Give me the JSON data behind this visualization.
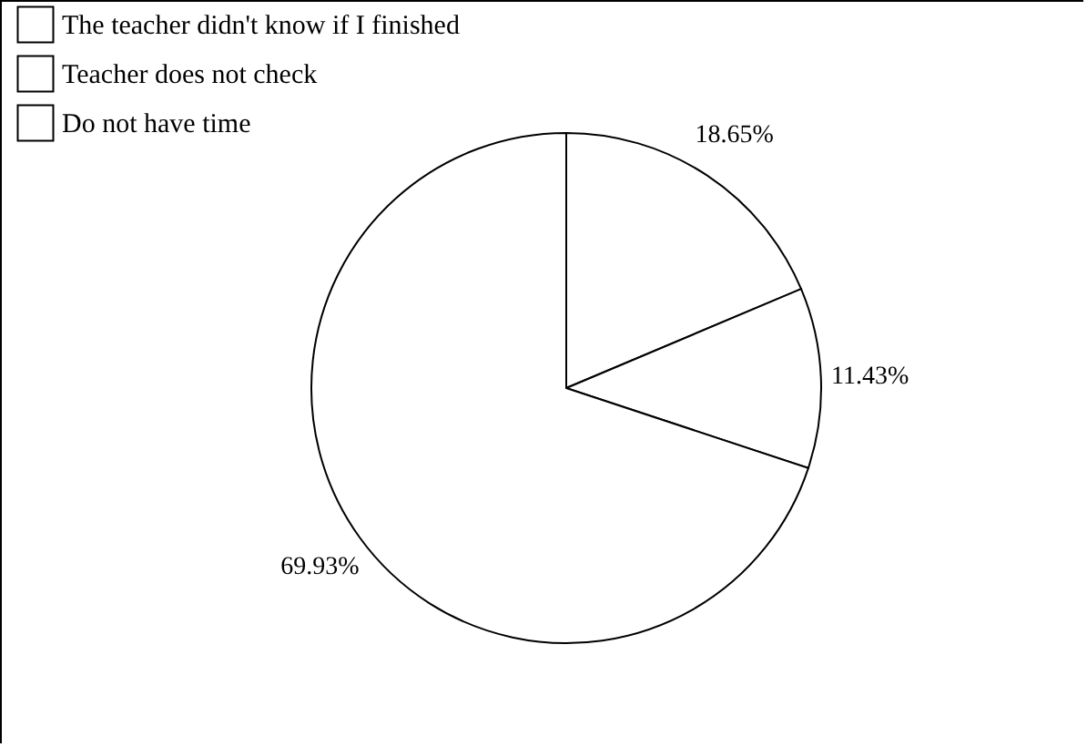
{
  "chart_data": {
    "type": "pie",
    "categories": [
      "The teacher didn't know if I finished",
      "Teacher does not check",
      "Do not have time"
    ],
    "values": [
      18.65,
      11.43,
      69.93
    ],
    "value_labels": [
      "18.65%",
      "11.43%",
      "69.93%"
    ],
    "colors": [
      "#ffffff",
      "#ffffff",
      "#ffffff"
    ],
    "legend": "top left"
  }
}
